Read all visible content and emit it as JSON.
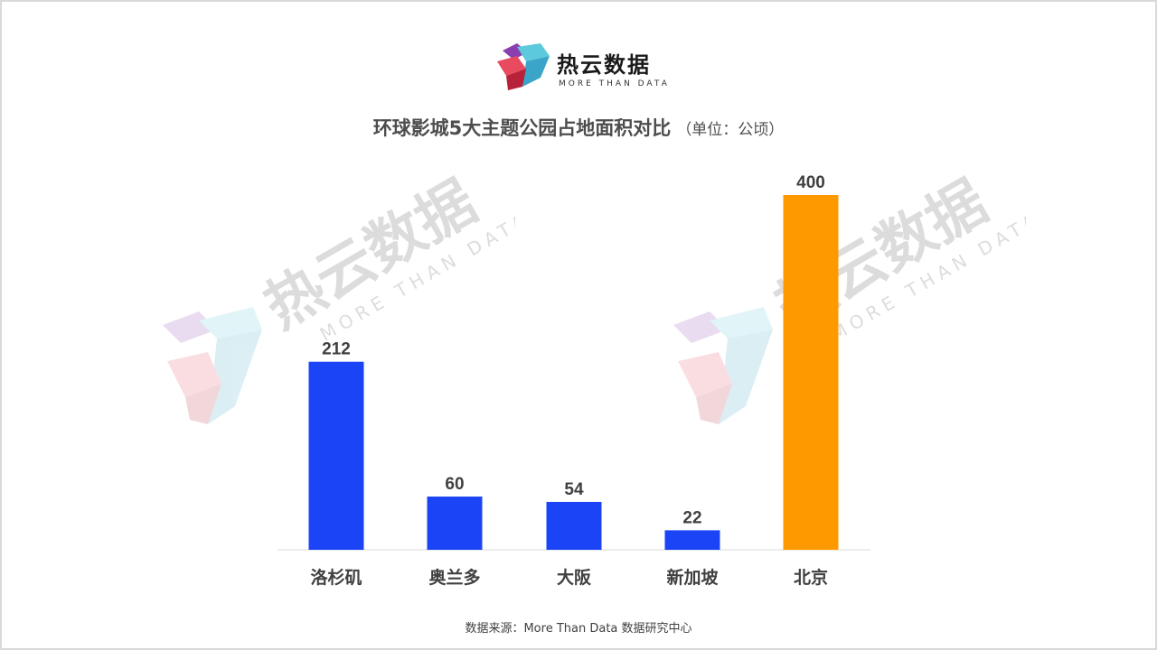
{
  "header": {
    "logo_text": "热云数据",
    "logo_subtext": "MORE THAN DATA"
  },
  "watermark": {
    "text": "热云数据",
    "subtext": "MORE THAN DATA"
  },
  "chart_data": {
    "type": "bar",
    "title": "环球影城5大主题公园占地面积对比",
    "unit_label": "（单位：公顷）",
    "categories": [
      "洛杉矶",
      "奥兰多",
      "大阪",
      "新加坡",
      "北京"
    ],
    "values": [
      212,
      60,
      54,
      22,
      400
    ],
    "bar_colors": [
      "#1a44f5",
      "#1a44f5",
      "#1a44f5",
      "#1a44f5",
      "#ff9900"
    ],
    "xlabel": "",
    "ylabel": "",
    "ylim": [
      0,
      400
    ],
    "grid": false,
    "legend": "none",
    "data_labels": true
  },
  "footer": {
    "source": "数据来源：More  Than  Data  数据研究中心"
  },
  "colors": {
    "bar_default": "#1a44f5",
    "bar_highlight": "#ff9900",
    "text": "#404040",
    "baseline": "#d9d9d9"
  }
}
